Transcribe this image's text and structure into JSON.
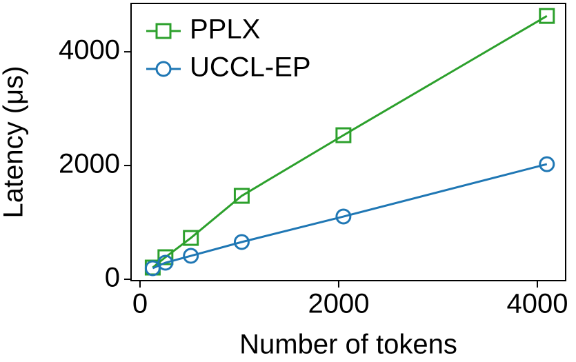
{
  "chart_data": {
    "type": "line",
    "x_label": "Number of tokens",
    "y_label": "Latency (μs)",
    "x": [
      128,
      256,
      512,
      1024,
      2048,
      4096
    ],
    "series": [
      {
        "name": "PPLX",
        "color": "#2ca02c",
        "marker": "square",
        "values": [
          206,
          388,
          727,
          1467,
          2533,
          4630
        ]
      },
      {
        "name": "UCCL-EP",
        "color": "#1f77b4",
        "marker": "circle",
        "values": [
          194,
          291,
          412,
          655,
          1103,
          2024
        ]
      }
    ],
    "xlim": [
      -90,
      4285
    ],
    "xticks": [
      0,
      2000,
      4000
    ],
    "ylim": [
      -24,
      4850
    ],
    "yticks": [
      0,
      2000,
      4000
    ],
    "legend": "upper-left"
  }
}
